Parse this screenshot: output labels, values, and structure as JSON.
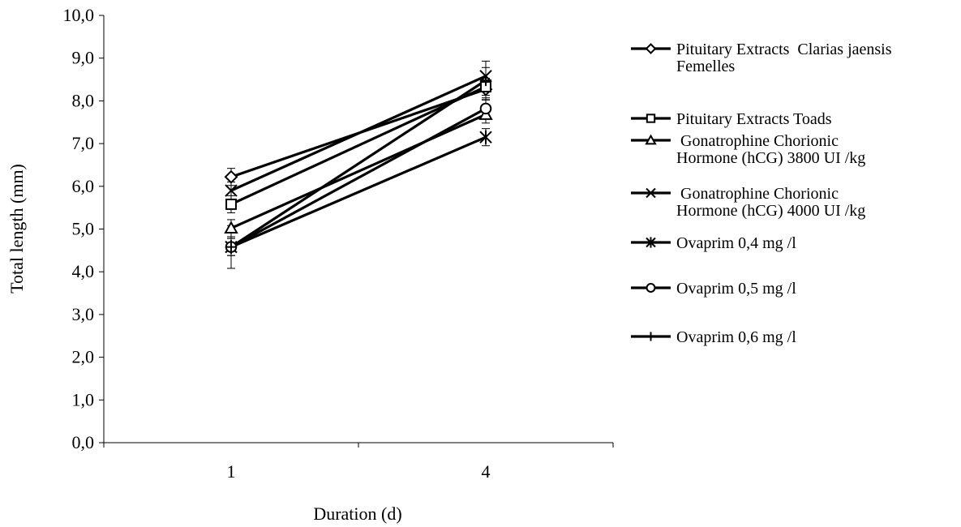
{
  "chart_data": {
    "type": "line",
    "title": "",
    "xlabel": "Duration (d)",
    "ylabel": "Total length (mm)",
    "categories": [
      "1",
      "4"
    ],
    "ylim": [
      0,
      10
    ],
    "yticks": [
      "0,0",
      "1,0",
      "2,0",
      "3,0",
      "4,0",
      "5,0",
      "6,0",
      "7,0",
      "8,0",
      "9,0",
      "10,0"
    ],
    "grid": false,
    "legend_position": "right",
    "series": [
      {
        "name_lines": [
          "Pituitary Extracts  Clarias jaensis",
          "Femelles"
        ],
        "marker": "diamond",
        "values": [
          6.22,
          8.27
        ],
        "errors": [
          0.2,
          0.2
        ]
      },
      {
        "name_lines": [
          "Pituitary Extracts Toads"
        ],
        "marker": "square",
        "values": [
          5.58,
          8.33
        ],
        "errors": [
          0.2,
          0.2
        ]
      },
      {
        "name_lines": [
          " Gonatrophine Chorionic",
          "Hormone (hCG) 3800 UI /kg"
        ],
        "marker": "triangle",
        "values": [
          5.02,
          7.68
        ],
        "errors": [
          0.2,
          0.2
        ]
      },
      {
        "name_lines": [
          " Gonatrophine Chorionic",
          "Hormone (hCG) 4000 UI /kg"
        ],
        "marker": "x",
        "values": [
          5.9,
          8.58
        ],
        "errors": [
          0.2,
          0.2
        ]
      },
      {
        "name_lines": [
          "Ovaprim 0,4 mg /l"
        ],
        "marker": "asterisk",
        "values": [
          4.58,
          7.15
        ],
        "errors": [
          0.2,
          0.2
        ]
      },
      {
        "name_lines": [
          "Ovaprim 0,5 mg /l"
        ],
        "marker": "circle",
        "values": [
          4.58,
          7.82
        ],
        "errors": [
          0.2,
          0.2
        ]
      },
      {
        "name_lines": [
          "Ovaprim 0,6 mg /l"
        ],
        "marker": "plus",
        "values": [
          4.58,
          8.48
        ],
        "errors": [
          0.5,
          0.45
        ]
      }
    ]
  }
}
